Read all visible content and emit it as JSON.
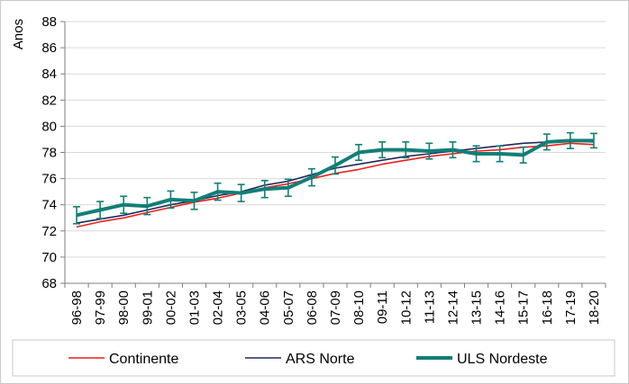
{
  "chart_data": {
    "type": "line",
    "ylabel": "Anos",
    "ylim": [
      68,
      88
    ],
    "yticks": [
      "68",
      "70",
      "72",
      "74",
      "76",
      "78",
      "80",
      "82",
      "84",
      "86",
      "88"
    ],
    "categories": [
      "96-98",
      "97-99",
      "98-00",
      "99-01",
      "00-02",
      "01-03",
      "02-04",
      "03-05",
      "04-06",
      "05-07",
      "06-08",
      "07-09",
      "08-10",
      "09-11",
      "10-12",
      "11-13",
      "12-14",
      "13-15",
      "14-16",
      "15-17",
      "16-18",
      "17-19",
      "18-20"
    ],
    "legend_position": "bottom",
    "series": [
      {
        "name": "Continente",
        "color": "#e8211c",
        "width": 1.6,
        "values": [
          72.3,
          72.7,
          73.0,
          73.4,
          73.8,
          74.2,
          74.5,
          74.9,
          75.3,
          75.6,
          76.0,
          76.4,
          76.7,
          77.1,
          77.4,
          77.7,
          77.9,
          78.1,
          78.2,
          78.4,
          78.5,
          78.7,
          78.6
        ]
      },
      {
        "name": "ARS Norte",
        "color": "#1f2a5a",
        "width": 1.6,
        "values": [
          72.6,
          72.9,
          73.2,
          73.6,
          74.0,
          74.3,
          74.7,
          75.0,
          75.5,
          75.8,
          76.3,
          76.8,
          77.1,
          77.4,
          77.7,
          77.9,
          78.1,
          78.3,
          78.5,
          78.7,
          78.8,
          78.9,
          78.8
        ]
      },
      {
        "name": "ULS Nordeste",
        "color": "#117f76",
        "width": 4,
        "values": [
          73.2,
          73.6,
          74.0,
          73.9,
          74.4,
          74.3,
          75.0,
          74.9,
          75.2,
          75.3,
          76.1,
          77.0,
          78.0,
          78.2,
          78.2,
          78.1,
          78.2,
          77.9,
          77.9,
          77.8,
          78.8,
          78.9,
          78.9
        ],
        "error": [
          0.65,
          0.65,
          0.65,
          0.65,
          0.65,
          0.65,
          0.65,
          0.65,
          0.65,
          0.65,
          0.65,
          0.65,
          0.6,
          0.6,
          0.6,
          0.6,
          0.6,
          0.6,
          0.6,
          0.6,
          0.6,
          0.6,
          0.55
        ]
      }
    ]
  }
}
